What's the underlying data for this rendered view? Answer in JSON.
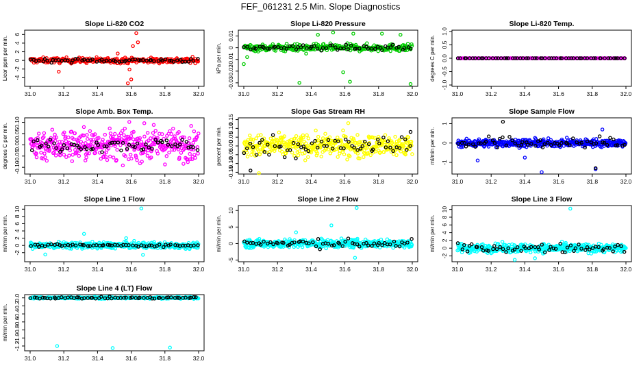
{
  "page": {
    "title": "FEF_061231  2.5 Min. Slope Diagnostics"
  },
  "chart_data": [
    {
      "type": "scatter",
      "title": "Slope Li-820 CO2",
      "ylabel": "Licor ppm per min.",
      "xlim": [
        31.0,
        32.0
      ],
      "ylim": [
        -6,
        7
      ],
      "xticks": [
        "31.0",
        "31.2",
        "31.4",
        "31.6",
        "31.8",
        "32.0"
      ],
      "yticks": [
        -4,
        -2,
        0,
        2,
        4,
        6
      ],
      "series": [
        {
          "color": "#ff0000",
          "n": 300,
          "center": 0,
          "spread": 0.45,
          "outliers": [
            [
              31.63,
              6.3
            ],
            [
              31.64,
              4.2
            ],
            [
              31.61,
              3.3
            ],
            [
              31.59,
              -2.1
            ],
            [
              31.58,
              -5.3
            ],
            [
              31.6,
              -4.4
            ],
            [
              31.17,
              -2.6
            ],
            [
              31.52,
              1.6
            ]
          ]
        },
        {
          "color": "#000000",
          "n": 60,
          "center": 0,
          "spread": 0.3,
          "outliers": []
        }
      ]
    },
    {
      "type": "scatter",
      "title": "Slope Li-820 Pressure",
      "ylabel": "kPa per min.",
      "xlim": [
        31.0,
        32.0
      ],
      "ylim": [
        -0.033,
        0.015
      ],
      "xticks": [
        "31.0",
        "31.2",
        "31.4",
        "31.6",
        "31.8",
        "32.0"
      ],
      "yticks": [
        0.01,
        0.0,
        -0.01,
        -0.02,
        -0.03
      ],
      "series": [
        {
          "color": "#00cc00",
          "n": 300,
          "center": 0,
          "spread": 0.0022,
          "outliers": [
            [
              31.33,
              -0.03
            ],
            [
              31.99,
              -0.031
            ],
            [
              31.0,
              -0.014
            ],
            [
              31.02,
              -0.008
            ],
            [
              31.82,
              0.012
            ],
            [
              31.53,
              0.013
            ],
            [
              31.59,
              -0.021
            ],
            [
              31.63,
              -0.029
            ],
            [
              31.44,
              0.011
            ],
            [
              31.65,
              0.012
            ],
            [
              31.37,
              -0.005
            ],
            [
              31.93,
              0.011
            ]
          ]
        },
        {
          "color": "#000000",
          "n": 60,
          "center": 0.0,
          "spread": 0.0015,
          "outliers": []
        }
      ]
    },
    {
      "type": "scatter",
      "title": "Slope Li-820 Temp.",
      "ylabel": "degrees C per min.",
      "xlim": [
        31.0,
        32.0
      ],
      "ylim": [
        -1.05,
        1.05
      ],
      "xticks": [
        "31.0",
        "31.2",
        "31.4",
        "31.6",
        "31.8",
        "32.0"
      ],
      "yticks": [
        "-1.0",
        "-0.5",
        "0.0",
        "0.5",
        "1.0"
      ],
      "series": [
        {
          "color": "#ff00ff",
          "n": 140,
          "center": 0,
          "spread": 0.0,
          "outliers": []
        },
        {
          "color": "#000000",
          "n": 60,
          "center": 0,
          "spread": 0.0,
          "outliers": []
        }
      ]
    },
    {
      "type": "scatter",
      "title": "Slope Amb. Box Temp.",
      "ylabel": "degrees C per min.",
      "xlim": [
        31.0,
        32.0
      ],
      "ylim": [
        -0.13,
        0.12
      ],
      "xticks": [
        "31.0",
        "31.2",
        "31.4",
        "31.6",
        "31.8",
        "32.0"
      ],
      "yticks": [
        "-0.10",
        "-0.05",
        "0.00",
        "0.05",
        "0.10"
      ],
      "series": [
        {
          "color": "#ff00ff",
          "n": 420,
          "center": 0,
          "spread": 0.05,
          "outliers": []
        },
        {
          "color": "#000000",
          "n": 60,
          "center": 0,
          "spread": 0.02,
          "outliers": []
        }
      ]
    },
    {
      "type": "scatter",
      "title": "Slope Gas Stream RH",
      "ylabel": "percent per min.",
      "xlim": [
        31.0,
        32.0
      ],
      "ylim": [
        -0.16,
        0.16
      ],
      "xticks": [
        "31.0",
        "31.2",
        "31.4",
        "31.6",
        "31.8",
        "32.0"
      ],
      "yticks": [
        "-0.15",
        "-0.10",
        "-0.05",
        "0.00",
        "0.05",
        "0.10",
        "0.15"
      ],
      "series": [
        {
          "color": "#ffff00",
          "n": 420,
          "center": 0,
          "spread": 0.045,
          "outliers": [
            [
              31.09,
              -0.155
            ],
            [
              31.62,
              0.13
            ]
          ]
        },
        {
          "color": "#000000",
          "n": 60,
          "center": 0,
          "spread": 0.04,
          "outliers": [
            [
              31.04,
              -0.14
            ],
            [
              31.99,
              0.08
            ]
          ]
        }
      ]
    },
    {
      "type": "scatter",
      "title": "Slope Sample Flow",
      "ylabel": "ml/min per min.",
      "xlim": [
        31.0,
        32.0
      ],
      "ylim": [
        -1.6,
        1.3
      ],
      "xticks": [
        "31.0",
        "31.2",
        "31.4",
        "31.6",
        "31.8",
        "32.0"
      ],
      "yticks": [
        -1,
        0,
        1
      ],
      "series": [
        {
          "color": "#0000ff",
          "n": 420,
          "center": 0,
          "spread": 0.14,
          "outliers": [
            [
              31.12,
              -0.9
            ],
            [
              31.5,
              -1.5
            ],
            [
              31.82,
              -1.35
            ],
            [
              31.86,
              0.7
            ],
            [
              31.4,
              -0.75
            ]
          ]
        },
        {
          "color": "#000000",
          "n": 60,
          "center": 0,
          "spread": 0.22,
          "outliers": [
            [
              31.27,
              1.1
            ],
            [
              31.82,
              -1.3
            ]
          ]
        }
      ]
    },
    {
      "type": "scatter",
      "title": "Slope Line 1 Flow",
      "ylabel": "ml/min per min.",
      "xlim": [
        31.0,
        32.0
      ],
      "ylim": [
        -4.5,
        11
      ],
      "xticks": [
        "31.0",
        "31.2",
        "31.4",
        "31.6",
        "31.8",
        "32.0"
      ],
      "yticks": [
        -2,
        0,
        2,
        4,
        6,
        8,
        10
      ],
      "series": [
        {
          "color": "#00ffff",
          "n": 420,
          "center": 0,
          "spread": 0.6,
          "outliers": [
            [
              31.66,
              10.2
            ],
            [
              31.32,
              3.2
            ],
            [
              31.09,
              -2.5
            ],
            [
              31.67,
              -2.6
            ],
            [
              31.57,
              2.0
            ]
          ]
        },
        {
          "color": "#000000",
          "n": 60,
          "center": 0,
          "spread": 0.25,
          "outliers": []
        }
      ]
    },
    {
      "type": "scatter",
      "title": "Slope Line 2 Flow",
      "ylabel": "ml/min per min.",
      "xlim": [
        31.0,
        32.0
      ],
      "ylim": [
        -5.5,
        11.5
      ],
      "xticks": [
        "31.0",
        "31.2",
        "31.4",
        "31.6",
        "31.8",
        "32.0"
      ],
      "yticks": [
        -5,
        0,
        5,
        10
      ],
      "series": [
        {
          "color": "#00ffff",
          "n": 420,
          "center": 0,
          "spread": 0.9,
          "outliers": [
            [
              31.67,
              10.8
            ],
            [
              31.52,
              5.5
            ],
            [
              31.66,
              -4.3
            ],
            [
              31.31,
              3.4
            ]
          ]
        },
        {
          "color": "#000000",
          "n": 60,
          "center": 0,
          "spread": 0.9,
          "outliers": []
        }
      ]
    },
    {
      "type": "scatter",
      "title": "Slope Line 3 Flow",
      "ylabel": "ml/min per min.",
      "xlim": [
        31.0,
        32.0
      ],
      "ylim": [
        -3.5,
        11
      ],
      "xticks": [
        "31.0",
        "31.2",
        "31.4",
        "31.6",
        "31.8",
        "32.0"
      ],
      "yticks": [
        -2,
        0,
        2,
        4,
        6,
        8,
        10
      ],
      "series": [
        {
          "color": "#00ffff",
          "n": 420,
          "center": 0,
          "spread": 0.8,
          "outliers": [
            [
              31.67,
              10.2
            ],
            [
              31.34,
              -3.0
            ],
            [
              31.46,
              -2.6
            ]
          ]
        },
        {
          "color": "#000000",
          "n": 60,
          "center": 0,
          "spread": 0.8,
          "outliers": []
        }
      ]
    },
    {
      "type": "scatter",
      "title": "Slope Line 4 (LT) Flow",
      "ylabel": "ml/min per min.",
      "xlim": [
        31.0,
        32.0
      ],
      "ylim": [
        -1.32,
        0.08
      ],
      "xticks": [
        "31.0",
        "31.2",
        "31.4",
        "31.6",
        "31.8",
        "32.0"
      ],
      "yticks": [
        "-1.2",
        "-1.0",
        "-0.8",
        "-0.6",
        "-0.4",
        "-0.2",
        "0.0"
      ],
      "series": [
        {
          "color": "#00ffff",
          "n": 420,
          "center": 0,
          "spread": 0.015,
          "outliers": [
            [
              31.16,
              -1.2
            ],
            [
              31.49,
              -1.25
            ],
            [
              31.83,
              -1.24
            ]
          ]
        },
        {
          "color": "#000000",
          "n": 60,
          "center": 0.0,
          "spread": 0.015,
          "outliers": []
        }
      ]
    }
  ]
}
